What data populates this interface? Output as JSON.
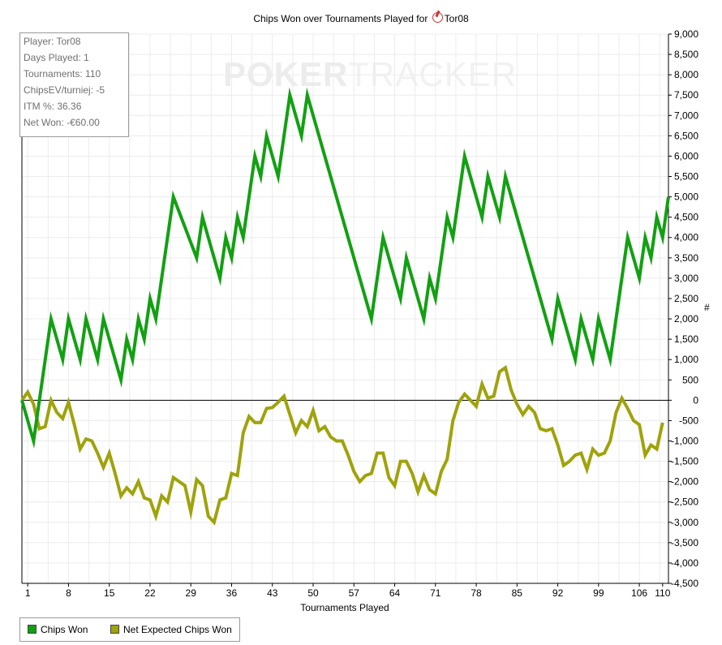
{
  "chart_data": {
    "type": "line",
    "title": "Chips Won over Tournaments Played for",
    "player_name": "Tor08",
    "xlabel": "Tournaments Played",
    "ylabel": "#",
    "xlim": [
      1,
      110
    ],
    "ylim": [
      -4500,
      9000
    ],
    "y_ticks": [
      -4500,
      -4000,
      -3500,
      -3000,
      -2500,
      -2000,
      -1500,
      -1000,
      -500,
      0,
      500,
      1000,
      1500,
      2000,
      2500,
      3000,
      3500,
      4000,
      4500,
      5000,
      5500,
      6000,
      6500,
      7000,
      7500,
      8000,
      8500,
      9000
    ],
    "y_tick_labels": [
      "-4,500",
      "-4,000",
      "-3,500",
      "-3,000",
      "-2,500",
      "-2,000",
      "-1,500",
      "-1,000",
      "-500",
      "0",
      "500",
      "1,000",
      "1,500",
      "2,000",
      "2,500",
      "3,000",
      "3,500",
      "4,000",
      "4,500",
      "5,000",
      "5,500",
      "6,000",
      "6,500",
      "7,000",
      "7,500",
      "8,000",
      "8,500",
      "9,000"
    ],
    "x_ticks": [
      1,
      8,
      15,
      22,
      29,
      36,
      43,
      50,
      57,
      64,
      71,
      78,
      85,
      92,
      99,
      106,
      110
    ],
    "x_tick_labels": [
      "1",
      "8",
      "15",
      "22",
      "29",
      "36",
      "43",
      "50",
      "57",
      "64",
      "71",
      "78",
      "85",
      "92",
      "99",
      "106",
      "110"
    ],
    "grid": true,
    "legend_position": "bottom-left",
    "series": [
      {
        "name": "Chips Won",
        "color": "#12a012",
        "points": [
          [
            0,
            0
          ],
          [
            2,
            -1000
          ],
          [
            5,
            2000
          ],
          [
            7,
            1000
          ],
          [
            8,
            2000
          ],
          [
            10,
            1000
          ],
          [
            11,
            2000
          ],
          [
            13,
            1000
          ],
          [
            14,
            2000
          ],
          [
            17,
            500
          ],
          [
            18,
            1500
          ],
          [
            19,
            1000
          ],
          [
            20,
            2000
          ],
          [
            21,
            1500
          ],
          [
            22,
            2500
          ],
          [
            23,
            2000
          ],
          [
            26,
            5000
          ],
          [
            30,
            3500
          ],
          [
            31,
            4500
          ],
          [
            34,
            3000
          ],
          [
            35,
            4000
          ],
          [
            36,
            3500
          ],
          [
            37,
            4500
          ],
          [
            38,
            4000
          ],
          [
            40,
            6000
          ],
          [
            41,
            5500
          ],
          [
            42,
            6500
          ],
          [
            44,
            5500
          ],
          [
            46,
            7500
          ],
          [
            48,
            6500
          ],
          [
            49,
            7500
          ],
          [
            60,
            2000
          ],
          [
            62,
            4000
          ],
          [
            65,
            2500
          ],
          [
            66,
            3500
          ],
          [
            69,
            2000
          ],
          [
            70,
            3000
          ],
          [
            71,
            2500
          ],
          [
            73,
            4500
          ],
          [
            74,
            4000
          ],
          [
            76,
            6000
          ],
          [
            79,
            4500
          ],
          [
            80,
            5500
          ],
          [
            82,
            4500
          ],
          [
            83,
            5500
          ],
          [
            91,
            1500
          ],
          [
            92,
            2500
          ],
          [
            95,
            1000
          ],
          [
            96,
            2000
          ],
          [
            98,
            1000
          ],
          [
            99,
            2000
          ],
          [
            101,
            1000
          ],
          [
            104,
            4000
          ],
          [
            106,
            3000
          ],
          [
            107,
            4000
          ],
          [
            108,
            3500
          ],
          [
            109,
            4500
          ],
          [
            110,
            4000
          ],
          [
            111,
            5000
          ]
        ]
      },
      {
        "name": "Net Expected Chips Won",
        "color": "#9fa30c",
        "points": [
          [
            0,
            0
          ],
          [
            1,
            200
          ],
          [
            2,
            -100
          ],
          [
            3,
            -700
          ],
          [
            4,
            -650
          ],
          [
            5,
            0
          ],
          [
            6,
            -300
          ],
          [
            7,
            -450
          ],
          [
            8,
            -50
          ],
          [
            9,
            -600
          ],
          [
            10,
            -1200
          ],
          [
            11,
            -950
          ],
          [
            12,
            -1000
          ],
          [
            13,
            -1300
          ],
          [
            14,
            -1650
          ],
          [
            15,
            -1300
          ],
          [
            16,
            -1800
          ],
          [
            17,
            -2350
          ],
          [
            18,
            -2150
          ],
          [
            19,
            -2300
          ],
          [
            20,
            -2000
          ],
          [
            21,
            -2400
          ],
          [
            22,
            -2450
          ],
          [
            23,
            -2850
          ],
          [
            24,
            -2350
          ],
          [
            25,
            -2500
          ],
          [
            26,
            -1900
          ],
          [
            27,
            -2000
          ],
          [
            28,
            -2100
          ],
          [
            29,
            -2750
          ],
          [
            30,
            -1950
          ],
          [
            31,
            -2100
          ],
          [
            32,
            -2850
          ],
          [
            33,
            -3000
          ],
          [
            34,
            -2450
          ],
          [
            35,
            -2400
          ],
          [
            36,
            -1800
          ],
          [
            37,
            -1850
          ],
          [
            38,
            -800
          ],
          [
            39,
            -400
          ],
          [
            40,
            -550
          ],
          [
            41,
            -550
          ],
          [
            42,
            -200
          ],
          [
            43,
            -180
          ],
          [
            44,
            -50
          ],
          [
            45,
            100
          ],
          [
            46,
            -350
          ],
          [
            47,
            -800
          ],
          [
            48,
            -500
          ],
          [
            49,
            -650
          ],
          [
            50,
            -250
          ],
          [
            51,
            -750
          ],
          [
            52,
            -650
          ],
          [
            53,
            -900
          ],
          [
            54,
            -1000
          ],
          [
            55,
            -1000
          ],
          [
            56,
            -1350
          ],
          [
            57,
            -1750
          ],
          [
            58,
            -2000
          ],
          [
            59,
            -1850
          ],
          [
            60,
            -1800
          ],
          [
            61,
            -1300
          ],
          [
            62,
            -1300
          ],
          [
            63,
            -1900
          ],
          [
            64,
            -2100
          ],
          [
            65,
            -1500
          ],
          [
            66,
            -1500
          ],
          [
            67,
            -1800
          ],
          [
            68,
            -2250
          ],
          [
            69,
            -1850
          ],
          [
            70,
            -2200
          ],
          [
            71,
            -2300
          ],
          [
            72,
            -1750
          ],
          [
            73,
            -1450
          ],
          [
            74,
            -500
          ],
          [
            75,
            -50
          ],
          [
            76,
            150
          ],
          [
            77,
            0
          ],
          [
            78,
            -150
          ],
          [
            79,
            400
          ],
          [
            80,
            50
          ],
          [
            81,
            100
          ],
          [
            82,
            700
          ],
          [
            83,
            800
          ],
          [
            84,
            250
          ],
          [
            85,
            -100
          ],
          [
            86,
            -350
          ],
          [
            87,
            -150
          ],
          [
            88,
            -300
          ],
          [
            89,
            -700
          ],
          [
            90,
            -750
          ],
          [
            91,
            -700
          ],
          [
            92,
            -1100
          ],
          [
            93,
            -1600
          ],
          [
            94,
            -1500
          ],
          [
            95,
            -1350
          ],
          [
            96,
            -1300
          ],
          [
            97,
            -1700
          ],
          [
            98,
            -1200
          ],
          [
            99,
            -1350
          ],
          [
            100,
            -1300
          ],
          [
            101,
            -1000
          ],
          [
            102,
            -300
          ],
          [
            103,
            50
          ],
          [
            104,
            -200
          ],
          [
            105,
            -500
          ],
          [
            106,
            -600
          ],
          [
            107,
            -1350
          ],
          [
            108,
            -1100
          ],
          [
            109,
            -1200
          ],
          [
            110,
            -550
          ]
        ]
      }
    ]
  },
  "stats": {
    "player": "Player: Tor08",
    "days_played": "Days Played: 1",
    "tournaments": "Tournaments: 110",
    "chips_ev": "ChipsEV/turniej: -5",
    "itm": "ITM %: 36.36",
    "net_won": "Net Won: -€60.00"
  },
  "watermark": {
    "bold": "POKER",
    "thin": "TRACKER"
  },
  "colors": {
    "grid": "#ececec",
    "axis": "#000000",
    "zero_line": "#000000"
  }
}
